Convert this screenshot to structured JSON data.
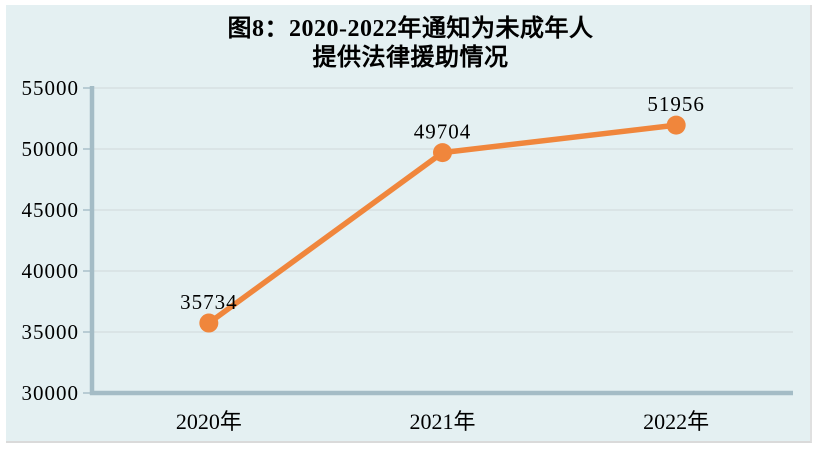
{
  "title": {
    "line1": "图8：2020-2022年通知为未成年人",
    "line2": "提供法律援助情况"
  },
  "chart_data": {
    "type": "line",
    "title": "图8：2020-2022年通知为未成年人提供法律援助情况",
    "categories": [
      "2020年",
      "2021年",
      "2022年"
    ],
    "series": [
      {
        "name": "通知为未成年人提供法律援助",
        "values": [
          35734,
          49704,
          51956
        ]
      }
    ],
    "data_labels": [
      "35734",
      "49704",
      "51956"
    ],
    "xlabel": "",
    "ylabel": "",
    "ylim": [
      30000,
      55000
    ],
    "ytick_step": 5000,
    "ytick_labels": [
      "30000",
      "35000",
      "40000",
      "45000",
      "50000",
      "55000"
    ],
    "grid": "horizontal",
    "legend": "none",
    "colors": {
      "series": "#f0863c",
      "panel_background": "#e4f0f2",
      "page_background": "#ffffff",
      "axis": "#a4bcc6",
      "gridline": "#d6e0e2",
      "tick": "#aec3cc",
      "text": "#000000"
    }
  }
}
